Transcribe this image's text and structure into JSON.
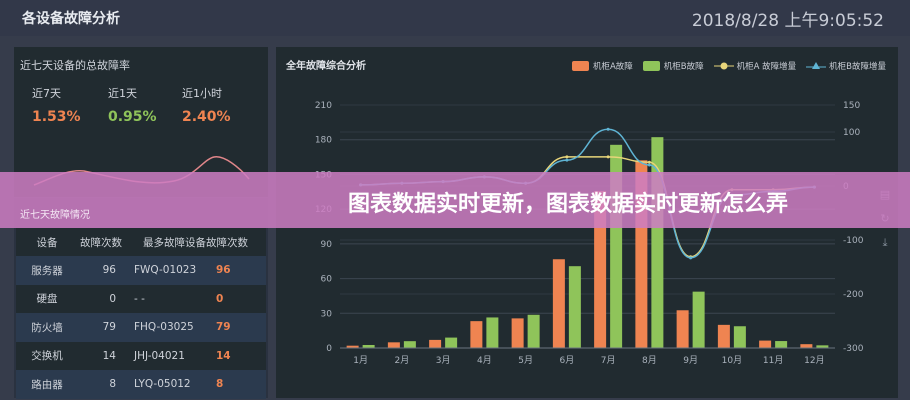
{
  "header": {
    "title": "各设备故障分析",
    "time": "2018/8/28 上午9:05:52"
  },
  "rate_panel": {
    "title": "近七天设备的总故障率",
    "stats": [
      {
        "label": "近7天",
        "value": "1.53%",
        "color": "#ef8451"
      },
      {
        "label": "近1天",
        "value": "0.95%",
        "color": "#8fc45a"
      },
      {
        "label": "近1小时",
        "value": "2.40%",
        "color": "#ef8451"
      }
    ]
  },
  "faults_panel": {
    "title": "近七天故障情况",
    "headers": [
      "设备",
      "故障次数",
      "最多故障设备",
      "故障次数"
    ],
    "rows": [
      [
        "服务器",
        "96",
        "FWQ-01023",
        "96"
      ],
      [
        "硬盘",
        "0",
        "- -",
        "0"
      ],
      [
        "防火墙",
        "79",
        "FHQ-03025",
        "79"
      ],
      [
        "交换机",
        "14",
        "JHJ-04021",
        "14"
      ],
      [
        "路由器",
        "8",
        "LYQ-05012",
        "8"
      ]
    ]
  },
  "banner": {
    "text": "图表数据实时更新，图表数据实时更新怎么弄"
  },
  "toolbox": [
    "data-view-icon",
    "restore-icon",
    "save-image-icon"
  ],
  "chart_data": {
    "type": "bar",
    "title": "全年故障综合分析",
    "categories": [
      "1月",
      "2月",
      "3月",
      "4月",
      "5月",
      "6月",
      "7月",
      "8月",
      "9月",
      "10月",
      "11月",
      "12月"
    ],
    "left_axis": {
      "range": [
        0,
        210
      ],
      "ticks": [
        "0",
        "30",
        "60",
        "90",
        "120",
        "150",
        "180",
        "210"
      ]
    },
    "right_axis": {
      "range": [
        -300,
        150
      ],
      "ticks": [
        "-300",
        "-200",
        "-100",
        "0",
        "100",
        "150"
      ]
    },
    "grid": true,
    "legend_placement": "top-right",
    "series": [
      {
        "name": "机柜A故障",
        "type": "bar",
        "axis": "left",
        "color": "#ef8451",
        "values": [
          2.0,
          4.9,
          7.0,
          23.2,
          25.6,
          76.7,
          135.6,
          162.2,
          32.6,
          20.0,
          6.4,
          3.3
        ]
      },
      {
        "name": "机柜B故障",
        "type": "bar",
        "axis": "left",
        "color": "#8fc45a",
        "values": [
          2.6,
          5.9,
          9.0,
          26.4,
          28.7,
          70.7,
          175.6,
          182.2,
          48.7,
          18.8,
          6.0,
          2.3
        ]
      },
      {
        "name": "机柜A 故障增量",
        "type": "line",
        "axis": "right",
        "color": "#e8d57a",
        "values": [
          2,
          5,
          8,
          17,
          5,
          54,
          54,
          44,
          -131,
          -7,
          -7,
          -2
        ]
      },
      {
        "name": "机柜B故障增量",
        "type": "line",
        "axis": "right",
        "color": "#5fb4d4",
        "values": [
          2,
          5,
          8,
          17,
          5,
          48,
          105,
          39,
          -133,
          -17,
          -10,
          -2
        ]
      }
    ]
  }
}
